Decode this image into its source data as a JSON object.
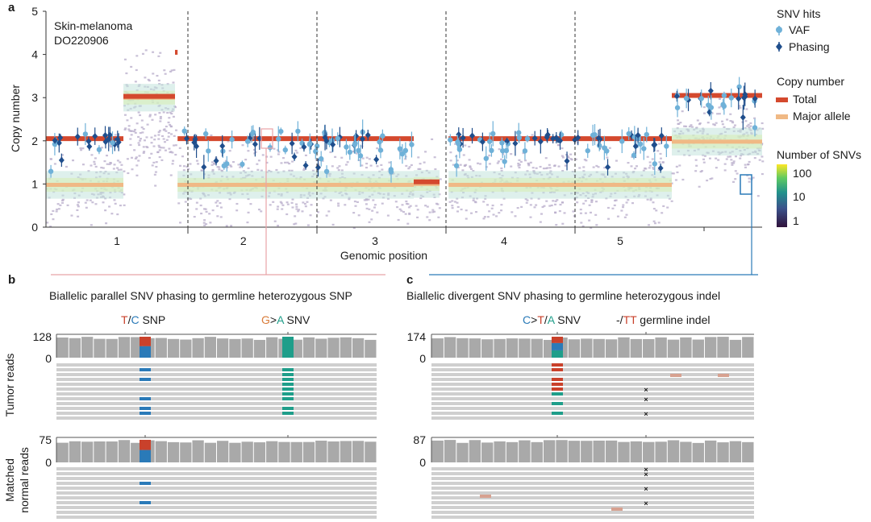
{
  "panel_labels": {
    "a": "a",
    "b": "b",
    "c": "c"
  },
  "colors": {
    "total": "#d4492e",
    "major": "#f0b985",
    "vaf": "#6fb1d8",
    "phasing": "#1f4e8c",
    "gray_read": "#bdbdbd",
    "gray_cov": "#a9a9a9",
    "red_base": "#c9412b",
    "blue_base": "#2a7ab8",
    "green_base": "#1f9e8a",
    "orange_letter": "#d97c3a",
    "indel": "#5b3f9e",
    "mismatch": "#d7a190",
    "scatter": "#b7abc9",
    "pink_box": "#e8a3a8",
    "blue_box": "#2a7ab8"
  },
  "chart_data": [
    {
      "type": "scatter",
      "panel": "a",
      "sample_line1": "Skin-melanoma",
      "sample_line2": "DO220906",
      "xlabel": "Genomic position",
      "ylabel": "Copy number",
      "ylim": [
        0,
        5
      ],
      "yticks": [
        "0",
        "1",
        "2",
        "3",
        "4",
        "5"
      ],
      "xlim": [
        0,
        5.55
      ],
      "chromosomes": [
        {
          "label": "1",
          "center": 0.55
        },
        {
          "label": "2",
          "center": 1.53
        },
        {
          "label": "3",
          "center": 2.55
        },
        {
          "label": "4",
          "center": 3.55
        },
        {
          "label": "5",
          "center": 4.45
        }
      ],
      "chromosome_boundaries": [
        1.1,
        2.1,
        3.1,
        4.1,
        5.1
      ],
      "total_segments": [
        {
          "start": 0.0,
          "end": 0.6,
          "cn": 2.05
        },
        {
          "start": 0.6,
          "end": 1.0,
          "cn": 3.03
        },
        {
          "start": 1.0,
          "end": 1.02,
          "cn": 4.05
        },
        {
          "start": 1.02,
          "end": 2.85,
          "cn": 2.05
        },
        {
          "start": 2.85,
          "end": 3.05,
          "cn": 1.05
        },
        {
          "start": 3.12,
          "end": 4.85,
          "cn": 2.05
        },
        {
          "start": 4.85,
          "end": 5.55,
          "cn": 3.05
        }
      ],
      "major_segments": [
        {
          "start": 0.0,
          "end": 0.6,
          "cn": 0.98
        },
        {
          "start": 0.6,
          "end": 1.0,
          "cn": 3.0
        },
        {
          "start": 1.02,
          "end": 2.85,
          "cn": 0.98
        },
        {
          "start": 2.85,
          "end": 3.05,
          "cn": 1.0
        },
        {
          "start": 3.12,
          "end": 4.85,
          "cn": 0.98
        },
        {
          "start": 4.85,
          "end": 5.55,
          "cn": 1.98
        }
      ],
      "legend_snv_title": "SNV hits",
      "legend_snv": [
        "VAF",
        "Phasing"
      ],
      "legend_cn_title": "Copy number",
      "legend_cn": [
        "Total",
        "Major allele"
      ],
      "colorbar_title": "Number of SNVs",
      "colorbar_ticks": [
        "100",
        "10",
        "1"
      ]
    },
    {
      "type": "table",
      "panel": "b",
      "title": "Biallelic parallel SNV phasing to germline heterozygous SNP",
      "snp_label_parts": [
        "T",
        "/",
        "C",
        " SNP"
      ],
      "snv_label_parts": [
        "G",
        ">",
        "A",
        " SNV"
      ],
      "tumor_max": "128",
      "tumor_min": "0",
      "normal_max": "75",
      "normal_min": "0",
      "tumor_ylabel": "Tumor reads",
      "normal_ylabel_line1": "Matched",
      "normal_ylabel_line2": "normal reads"
    },
    {
      "type": "table",
      "panel": "c",
      "title": "Biallelic divergent SNV phasing to germline heterozygous indel",
      "snv_label_parts": [
        "C",
        ">",
        "T",
        "/",
        "A",
        " SNV"
      ],
      "indel_label_parts": [
        "-/",
        "TT",
        " germline indel"
      ],
      "tumor_max": "174",
      "tumor_min": "0",
      "normal_max": "87",
      "normal_min": "0"
    }
  ]
}
